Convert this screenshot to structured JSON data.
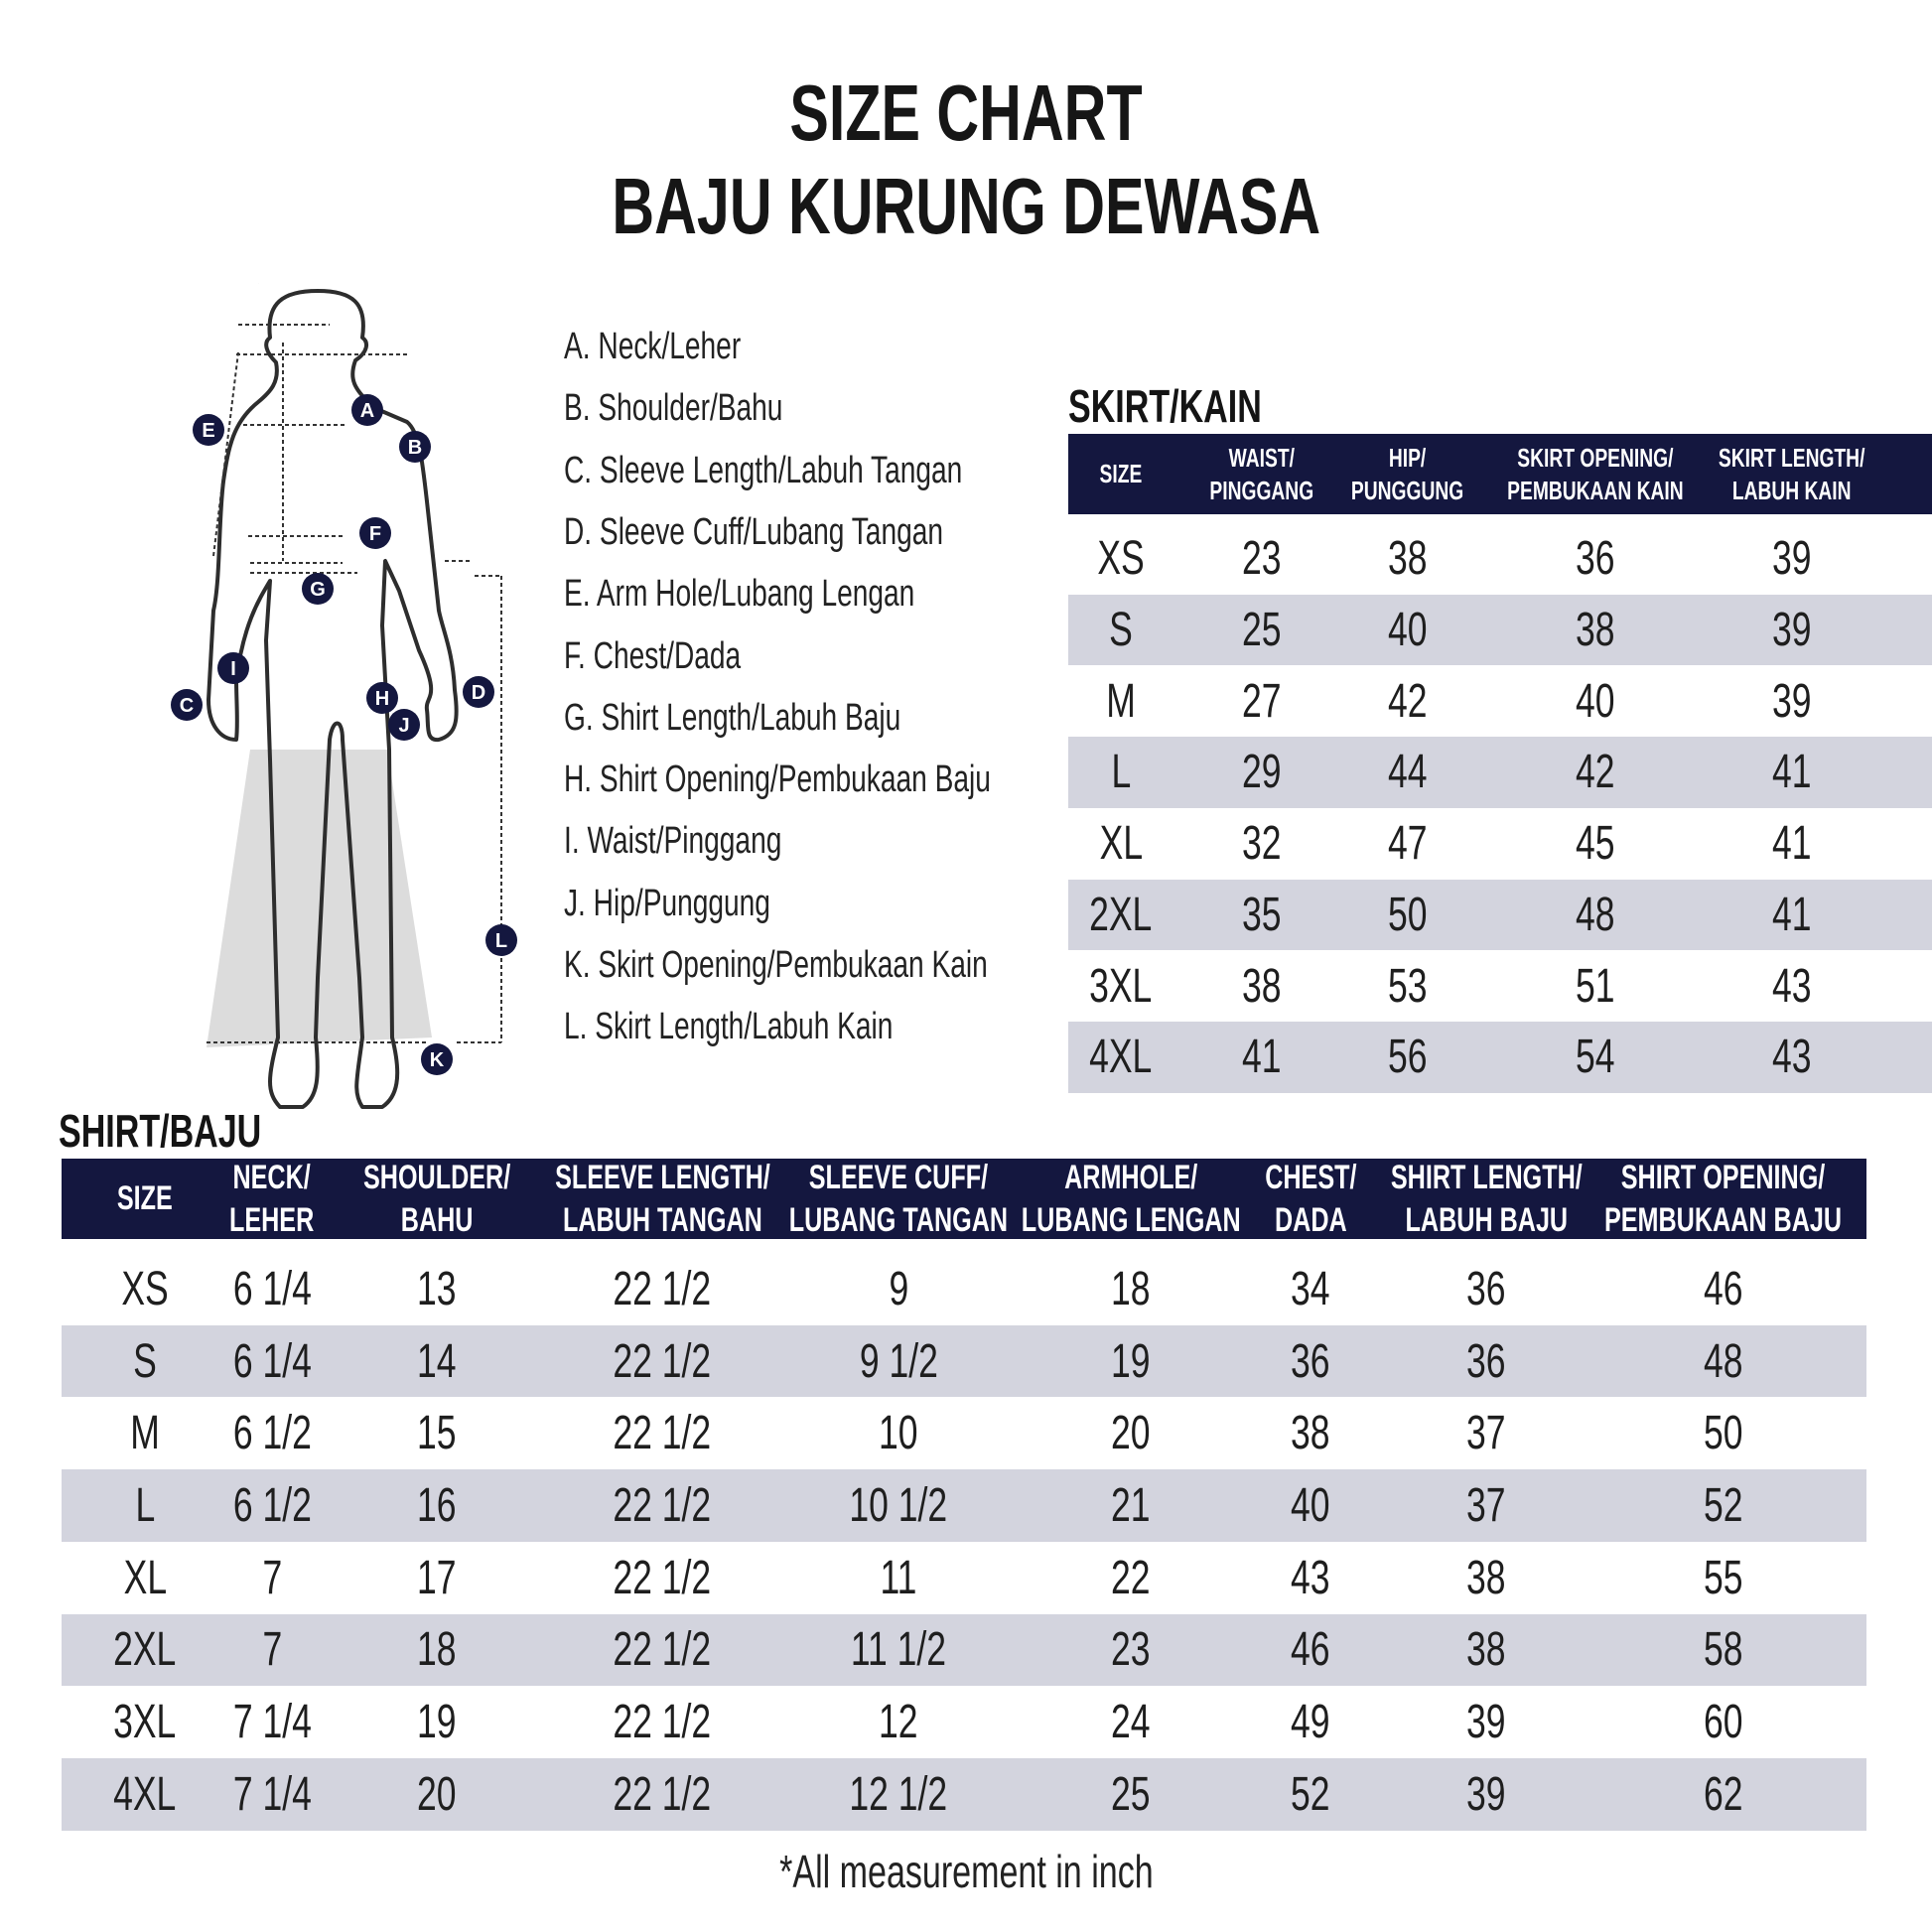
{
  "title": {
    "line1": "SIZE CHART",
    "line2": "BAJU KURUNG DEWASA"
  },
  "figure": {
    "markers": [
      "A",
      "B",
      "C",
      "D",
      "E",
      "F",
      "G",
      "H",
      "I",
      "J",
      "K",
      "L"
    ],
    "marker_color": "#14173f",
    "skirt_fill": "#dcdcdc"
  },
  "legend": [
    "A. Neck/Leher",
    "B. Shoulder/Bahu",
    "C. Sleeve Length/Labuh Tangan",
    "D. Sleeve Cuff/Lubang Tangan",
    "E. Arm Hole/Lubang Lengan",
    "F. Chest/Dada",
    "G. Shirt Length/Labuh Baju",
    "H. Shirt Opening/Pembukaan Baju",
    "I. Waist/Pinggang",
    "J. Hip/Punggung",
    "K. Skirt Opening/Pembukaan Kain",
    "L. Skirt Length/Labuh Kain"
  ],
  "skirt": {
    "title": "SKIRT/KAIN",
    "headers": [
      [
        "SIZE"
      ],
      [
        "WAIST/",
        "PINGGANG"
      ],
      [
        "HIP/",
        "PUNGGUNG"
      ],
      [
        "SKIRT OPENING/",
        "PEMBUKAAN KAIN"
      ],
      [
        "SKIRT LENGTH/",
        "LABUH KAIN"
      ]
    ],
    "rows": [
      [
        "XS",
        "23",
        "38",
        "36",
        "39"
      ],
      [
        "S",
        "25",
        "40",
        "38",
        "39"
      ],
      [
        "M",
        "27",
        "42",
        "40",
        "39"
      ],
      [
        "L",
        "29",
        "44",
        "42",
        "41"
      ],
      [
        "XL",
        "32",
        "47",
        "45",
        "41"
      ],
      [
        "2XL",
        "35",
        "50",
        "48",
        "41"
      ],
      [
        "3XL",
        "38",
        "53",
        "51",
        "43"
      ],
      [
        "4XL",
        "41",
        "56",
        "54",
        "43"
      ]
    ]
  },
  "shirt": {
    "title": "SHIRT/BAJU",
    "headers": [
      [
        "SIZE"
      ],
      [
        "NECK/",
        "LEHER"
      ],
      [
        "SHOULDER/",
        "BAHU"
      ],
      [
        "SLEEVE LENGTH/",
        "LABUH TANGAN"
      ],
      [
        "SLEEVE CUFF/",
        "LUBANG TANGAN"
      ],
      [
        "ARMHOLE/",
        "LUBANG LENGAN"
      ],
      [
        "CHEST/",
        "DADA"
      ],
      [
        "SHIRT LENGTH/",
        "LABUH BAJU"
      ],
      [
        "SHIRT OPENING/",
        "PEMBUKAAN BAJU"
      ]
    ],
    "rows": [
      [
        "XS",
        "6 1/4",
        "13",
        "22 1/2",
        "9",
        "18",
        "34",
        "36",
        "46"
      ],
      [
        "S",
        "6 1/4",
        "14",
        "22 1/2",
        "9 1/2",
        "19",
        "36",
        "36",
        "48"
      ],
      [
        "M",
        "6 1/2",
        "15",
        "22 1/2",
        "10",
        "20",
        "38",
        "37",
        "50"
      ],
      [
        "L",
        "6 1/2",
        "16",
        "22 1/2",
        "10 1/2",
        "21",
        "40",
        "37",
        "52"
      ],
      [
        "XL",
        "7",
        "17",
        "22 1/2",
        "11",
        "22",
        "43",
        "38",
        "55"
      ],
      [
        "2XL",
        "7",
        "18",
        "22 1/2",
        "11 1/2",
        "23",
        "46",
        "38",
        "58"
      ],
      [
        "3XL",
        "7 1/4",
        "19",
        "22 1/2",
        "12",
        "24",
        "49",
        "39",
        "60"
      ],
      [
        "4XL",
        "7 1/4",
        "20",
        "22 1/2",
        "12 1/2",
        "25",
        "52",
        "39",
        "62"
      ]
    ]
  },
  "footnote": "*All measurement in inch",
  "colors": {
    "header_bg": "#14173f",
    "stripe": "#d3d4de"
  }
}
